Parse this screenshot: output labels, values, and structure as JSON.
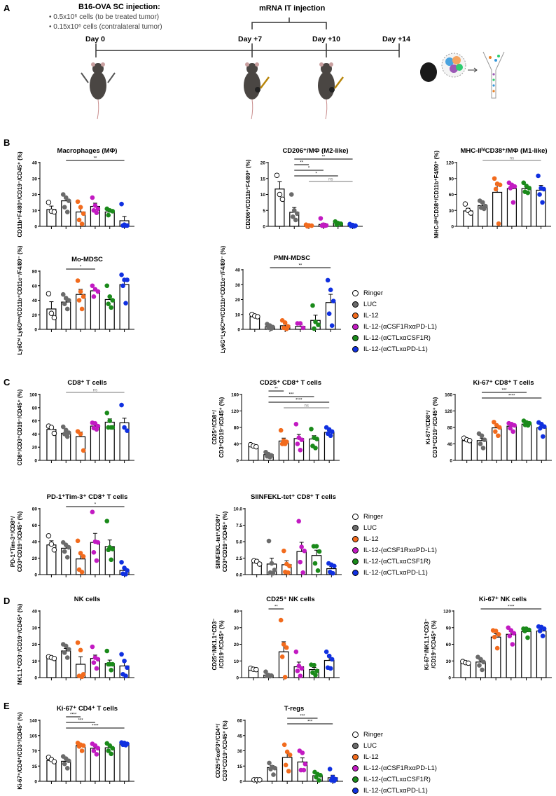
{
  "panel_a": {
    "letter": "A",
    "sc_injection_title": "B16-OVA SC injection:",
    "bullets": [
      "0.5x10⁶ cells (to be treated tumor)",
      "0.15x10⁶ cells (contralateral tumor)"
    ],
    "it_injection_title": "mRNA IT injection",
    "days": [
      "Day 0",
      "Day +7",
      "Day +10",
      "Day +14"
    ]
  },
  "section_letters": [
    "B",
    "C",
    "D",
    "E"
  ],
  "groups": [
    "Ringer",
    "LUC",
    "IL-12",
    "IL-12-(αCSF1RxαPD-L1)",
    "IL-12-(αCTLxαCSF1R)",
    "IL-12-(αCTLxαPD-L1)"
  ],
  "colors": [
    "#ffffff",
    "#6b6b6b",
    "#f26b1d",
    "#c21ac2",
    "#1a8a1a",
    "#1030e0"
  ],
  "chart_data": [
    {
      "type": "bar",
      "title": "Macrophages (MΦ)",
      "ylabel": "CD11b⁺F4/80⁺/CD19⁻/CD45⁺ (%)",
      "ylim": [
        0,
        40
      ],
      "yticks": [
        "0",
        "10",
        "20",
        "30",
        "40"
      ],
      "means": [
        10.5,
        16,
        9,
        12.5,
        9,
        3.5
      ],
      "sem": [
        2.2,
        2,
        3,
        2,
        1,
        2.7
      ],
      "points": [
        [
          15,
          9.5,
          9
        ],
        [
          20,
          18,
          16,
          12,
          9
        ],
        [
          15.5,
          12,
          8,
          4,
          1.5
        ],
        [
          18,
          13,
          11,
          10,
          8.5
        ],
        [
          11,
          10,
          9.5,
          7
        ],
        [
          14,
          1,
          0.5,
          0.5,
          0.5
        ]
      ],
      "sig": [
        {
          "from": 1,
          "to": 5,
          "label": "**"
        }
      ]
    },
    {
      "type": "bar",
      "title": "CD206⁺/MΦ (M2-like)",
      "ylabel": "CD206⁺/CD11b⁺F4/80⁺ (%)",
      "ylim": [
        0,
        20
      ],
      "yticks": [
        "0",
        "5",
        "10",
        "15",
        "20"
      ],
      "means": [
        11.7,
        4.4,
        0.3,
        0.6,
        1,
        0.4
      ],
      "sem": [
        2.3,
        1.5,
        0.2,
        0.4,
        0.2,
        0.2
      ],
      "points": [
        [
          16,
          10,
          8.5
        ],
        [
          10,
          5,
          4,
          3,
          2
        ],
        [
          0.5,
          0.3,
          0.2,
          0
        ],
        [
          2.5,
          0.5,
          0.3,
          0.2,
          0.2
        ],
        [
          1.5,
          1,
          0.8,
          0.5
        ],
        [
          0.7,
          0.4,
          0.2,
          0.1,
          0
        ]
      ],
      "sig": [
        {
          "from": 1,
          "to": 5,
          "label": "**"
        },
        {
          "from": 1,
          "to": 2,
          "label": "**"
        },
        {
          "from": 1,
          "to": 3,
          "label": "*"
        },
        {
          "from": 1,
          "to": 4,
          "label": "*"
        },
        {
          "from": 2,
          "to": 5,
          "label": "ns"
        }
      ]
    },
    {
      "type": "bar",
      "title": "MHC-IIʰⁱCD38⁺/MΦ (M1-like)",
      "ylabel": "MHC-IIʰⁱCD38⁺/CD11b⁺F4/80⁺ (%)",
      "ylim": [
        0,
        120
      ],
      "yticks": [
        "0",
        "30",
        "60",
        "90",
        "120"
      ],
      "means": [
        29,
        39,
        64,
        71,
        71,
        68
      ],
      "sem": [
        5,
        4,
        14,
        7,
        5,
        9
      ],
      "points": [
        [
          42,
          30,
          25
        ],
        [
          48,
          45,
          38,
          35,
          33
        ],
        [
          90,
          80,
          78,
          70,
          5
        ],
        [
          82,
          78,
          75,
          72,
          45
        ],
        [
          82,
          76,
          72,
          65,
          63
        ],
        [
          95,
          72,
          70,
          60,
          45
        ]
      ],
      "sig": [
        {
          "from": 1,
          "to": 5,
          "label": "ns"
        }
      ]
    },
    {
      "type": "bar",
      "title": "Mo-MDSC",
      "ylabel": "Ly6Cʰⁱ Ly6Gˡᵒʷ/CD11b⁺CD11c⁻/F4/80⁻ (%)",
      "ylim": [
        0,
        80
      ],
      "yticks": [
        "0",
        "20",
        "40",
        "60",
        "80"
      ],
      "means": [
        28,
        37.5,
        48,
        53,
        41,
        61.5
      ],
      "sem": [
        10,
        4,
        7,
        3,
        5,
        7
      ],
      "points": [
        [
          49,
          22,
          16
        ],
        [
          48,
          43,
          40,
          35,
          28
        ],
        [
          67,
          52,
          45,
          40,
          28
        ],
        [
          60,
          55,
          52,
          45
        ],
        [
          60,
          45,
          40,
          35,
          30
        ],
        [
          75,
          68,
          68,
          60,
          36
        ]
      ],
      "sig": [
        {
          "from": 1,
          "to": 3,
          "label": "*"
        }
      ]
    },
    {
      "type": "bar",
      "title": "PMN-MDSC",
      "ylabel": "Ly6G⁺Ly6Cˡᵒʷ/CD11b⁺CD11c⁻/F4/80⁻ (%)",
      "ylim": [
        0,
        40
      ],
      "yticks": [
        "0",
        "10",
        "20",
        "30",
        "40"
      ],
      "means": [
        8.5,
        1.7,
        2.4,
        2,
        6,
        18
      ],
      "sem": [
        0.5,
        0.6,
        1.1,
        1,
        3.5,
        5.5
      ],
      "points": [
        [
          10,
          9,
          8.5
        ],
        [
          3.5,
          2.5,
          1.5,
          1,
          0.5
        ],
        [
          6,
          4.5,
          2,
          1,
          0.3
        ],
        [
          4,
          4,
          1
        ],
        [
          16,
          5,
          3,
          0.5
        ],
        [
          33,
          26.5,
          19,
          10.5,
          2.5
        ]
      ],
      "sig": [
        {
          "from": 1,
          "to": 5,
          "label": "**"
        }
      ]
    },
    {
      "type": "bar",
      "title": "CD8⁺ T cells",
      "ylabel": "CD8⁺/CD3⁺CD19⁻/CD45⁺ (%)",
      "ylim": [
        0,
        100
      ],
      "yticks": [
        "0",
        "20",
        "40",
        "60",
        "80",
        "100"
      ],
      "means": [
        47,
        41,
        36,
        52,
        58,
        57
      ],
      "sem": [
        3,
        3,
        7,
        2,
        5,
        7
      ],
      "points": [
        [
          52,
          50,
          41
        ],
        [
          51,
          46,
          42,
          40,
          36
        ],
        [
          44,
          40,
          15
        ],
        [
          57,
          56,
          52,
          49,
          47
        ],
        [
          72,
          60,
          50,
          50,
          50
        ],
        [
          84,
          50,
          45
        ]
      ],
      "sig": [
        {
          "from": 1,
          "to": 5,
          "label": "ns"
        }
      ]
    },
    {
      "type": "bar",
      "title": "CD25⁺ CD8⁺ T cells",
      "ylabel": "CD25⁺/CD8⁺/\nCD3⁺CD19⁻/CD45⁺ (%)",
      "ylim": [
        0,
        160
      ],
      "yticks": [
        "0",
        "40",
        "80",
        "120",
        "160"
      ],
      "means": [
        34,
        14,
        47,
        53,
        52,
        68
      ],
      "sem": [
        2,
        2,
        7,
        10,
        8,
        4
      ],
      "points": [
        [
          38,
          35,
          33
        ],
        [
          20,
          15,
          12,
          10,
          8
        ],
        [
          73,
          48,
          45,
          40,
          40
        ],
        [
          88,
          55,
          50,
          40,
          25
        ],
        [
          76,
          55,
          52,
          35,
          30
        ],
        [
          80,
          75,
          70,
          65,
          60
        ]
      ],
      "sig": [
        {
          "from": 1,
          "to": 2,
          "label": "**"
        },
        {
          "from": 1,
          "to": 4,
          "label": "***"
        },
        {
          "from": 1,
          "to": 5,
          "label": "****"
        },
        {
          "from": 2,
          "to": 5,
          "label": "ns"
        }
      ]
    },
    {
      "type": "bar",
      "title": "Ki-67⁺ CD8⁺ T cells",
      "ylabel": "Ki-67⁺/CD8⁺/\nCD3⁺CD19⁻/CD45⁺ (%)",
      "ylim": [
        0,
        160
      ],
      "yticks": [
        "0",
        "40",
        "80",
        "120",
        "160"
      ],
      "means": [
        48,
        48,
        79,
        83,
        88,
        79
      ],
      "sem": [
        2,
        6,
        6,
        4,
        2,
        6
      ],
      "points": [
        [
          54,
          50,
          48
        ],
        [
          65,
          60,
          50,
          40,
          30
        ],
        [
          93,
          85,
          80,
          70,
          60
        ],
        [
          90,
          88,
          85,
          78,
          70
        ],
        [
          96,
          92,
          90,
          86,
          85
        ],
        [
          92,
          88,
          82,
          78,
          58
        ]
      ],
      "sig": [
        {
          "from": 1,
          "to": 4,
          "label": "***"
        },
        {
          "from": 1,
          "to": 5,
          "label": "****"
        }
      ]
    },
    {
      "type": "bar",
      "title": "PD-1⁺Tim-3⁺ CD8⁺ T cells",
      "ylabel": "PD-1⁺Tim-3⁺/CD8⁺/\nCD3⁺CD19⁻/CD45⁺ (%)",
      "ylim": [
        0,
        80
      ],
      "yticks": [
        "0",
        "20",
        "40",
        "60",
        "80"
      ],
      "means": [
        36,
        32,
        19,
        39,
        34,
        5
      ],
      "sem": [
        5,
        3,
        7,
        11,
        8,
        3
      ],
      "points": [
        [
          47,
          37,
          30
        ],
        [
          39,
          36,
          33,
          28,
          21
        ],
        [
          41,
          26,
          22,
          6,
          3
        ],
        [
          76,
          40,
          39,
          27,
          17
        ],
        [
          65,
          33,
          31,
          30,
          18
        ],
        [
          15,
          8,
          5,
          1,
          0.5
        ]
      ],
      "sig": [
        {
          "from": 1,
          "to": 5,
          "label": "*"
        }
      ]
    },
    {
      "type": "bar",
      "title": "SIINFEKL-tet⁺ CD8⁺ T cells",
      "ylabel": "SIINFEKL-tet⁺/CD8⁺/\nCD3⁺CD19⁻/CD45⁺ (%)",
      "ylim": [
        0,
        10
      ],
      "yticks": [
        "0.0",
        "2.5",
        "5.0",
        "7.5",
        "10.0"
      ],
      "means": [
        1.8,
        1.6,
        1.5,
        3.5,
        2.9,
        0.9
      ],
      "sem": [
        0.2,
        0.9,
        0.6,
        1.4,
        0.8,
        0.3
      ],
      "points": [
        [
          2.1,
          2,
          1.6
        ],
        [
          5.1,
          1.7,
          0.7,
          0.3,
          0.2
        ],
        [
          3.6,
          1.6,
          1.3,
          0.4,
          0.3
        ],
        [
          8.1,
          4.2,
          3.6,
          1.9,
          0.3
        ],
        [
          4.3,
          4.3,
          3.5,
          1.7,
          0.6
        ],
        [
          1.7,
          1.5,
          1.3,
          0.4,
          0.2
        ]
      ],
      "sig": []
    },
    {
      "type": "bar",
      "title": "NK cells",
      "ylabel": "NK1.1⁺CD3⁻/CD19⁻/CD45⁺ (%)",
      "ylim": [
        0,
        40
      ],
      "yticks": [
        "0",
        "10",
        "20",
        "30",
        "40"
      ],
      "means": [
        12,
        16,
        8,
        11.5,
        8.5,
        7
      ],
      "sem": [
        0.5,
        1.5,
        4.5,
        2,
        2,
        2.5
      ],
      "points": [
        [
          12.5,
          12,
          11.5
        ],
        [
          20,
          19,
          17,
          15,
          12
        ],
        [
          21,
          16.5,
          2,
          1,
          0.5
        ],
        [
          18.5,
          12,
          11,
          9,
          5.5
        ],
        [
          16,
          8,
          8,
          8,
          4.5
        ],
        [
          14,
          10,
          6,
          2,
          1
        ]
      ],
      "sig": []
    },
    {
      "type": "bar",
      "title": "CD25⁺ NK cells",
      "ylabel": "CD25⁺/NK1.1⁺CD3⁻\n/CD19⁻/CD45⁺ (%)",
      "ylim": [
        0,
        40
      ],
      "yticks": [
        "0",
        "10",
        "20",
        "30",
        "40"
      ],
      "means": [
        5.2,
        1.5,
        15.5,
        6.5,
        4.8,
        10.3
      ],
      "sem": [
        0.4,
        0.5,
        6,
        2.8,
        1.3,
        2
      ],
      "points": [
        [
          5.6,
          5,
          4.8
        ],
        [
          3.5,
          1.5,
          1.2,
          1,
          0.8
        ],
        [
          34.5,
          20,
          18,
          12.5,
          0.3
        ],
        [
          15.5,
          7,
          5.5,
          4,
          1
        ],
        [
          7.7,
          7.5,
          4,
          3,
          1.5
        ],
        [
          15.5,
          13,
          11,
          6,
          5.5
        ]
      ],
      "sig": [
        {
          "from": 1,
          "to": 2,
          "label": "**"
        }
      ]
    },
    {
      "type": "bar",
      "title": "Ki-67⁺ NK cells",
      "ylabel": "Ki-67⁺/NK1.1⁺CD3⁻\n/CD19⁻/CD45⁺ (%)",
      "ylim": [
        0,
        120
      ],
      "yticks": [
        "0",
        "30",
        "60",
        "90",
        "120"
      ],
      "means": [
        27,
        28,
        73,
        78,
        83,
        84
      ],
      "sem": [
        1,
        4,
        6,
        5,
        3,
        3
      ],
      "points": [
        [
          29,
          27,
          26
        ],
        [
          37,
          33,
          28,
          22,
          14
        ],
        [
          85,
          84,
          78,
          73,
          53
        ],
        [
          90,
          85,
          80,
          75,
          60
        ],
        [
          88,
          88,
          86,
          84,
          72
        ],
        [
          92,
          91,
          88,
          84,
          75
        ]
      ],
      "sig": [
        {
          "from": 1,
          "to": 5,
          "label": "****"
        }
      ]
    },
    {
      "type": "bar",
      "title": "Ki-67⁺ CD4⁺ T cells",
      "ylabel": "Ki-67⁺/CD4⁺/CD3⁺/CD45⁺ (%)",
      "ylim": [
        0,
        140
      ],
      "yticks": [
        "0",
        "35",
        "70",
        "105",
        "140"
      ],
      "means": [
        48,
        46,
        82,
        76,
        77,
        86
      ],
      "sem": [
        3,
        5,
        3,
        4,
        4,
        1
      ],
      "points": [
        [
          55,
          50,
          45
        ],
        [
          57,
          52,
          47,
          40,
          30
        ],
        [
          88,
          84,
          82,
          80,
          70
        ],
        [
          86,
          82,
          76,
          70,
          62
        ],
        [
          87,
          82,
          76,
          70,
          63
        ],
        [
          89,
          88,
          86,
          84,
          83
        ]
      ],
      "sig": [
        {
          "from": 1,
          "to": 2,
          "label": "****"
        },
        {
          "from": 1,
          "to": 3,
          "label": "***"
        },
        {
          "from": 1,
          "to": 5,
          "label": "****"
        }
      ]
    },
    {
      "type": "bar",
      "title": "T-regs",
      "ylabel": "CD25⁺FoxP3⁺/CD4⁺/\nCD3⁺CD19⁻/CD45⁺ (%)",
      "ylim": [
        0,
        60
      ],
      "yticks": [
        "0",
        "15",
        "30",
        "45",
        "60"
      ],
      "means": [
        1.5,
        13.5,
        23.5,
        19,
        5.5,
        3.5
      ],
      "sem": [
        0.1,
        2,
        5,
        4,
        1.5,
        2.5
      ],
      "points": [
        [
          1.5,
          1.5,
          1.5
        ],
        [
          18,
          14,
          13,
          12,
          6.5
        ],
        [
          36,
          29,
          26,
          16,
          10
        ],
        [
          30,
          28,
          17,
          11,
          11
        ],
        [
          9,
          7,
          6,
          4,
          1
        ],
        [
          12,
          4,
          2,
          1,
          0.5
        ]
      ],
      "sig": [
        {
          "from": 2,
          "to": 4,
          "label": "***"
        },
        {
          "from": 2,
          "to": 5,
          "label": "***"
        }
      ]
    }
  ]
}
